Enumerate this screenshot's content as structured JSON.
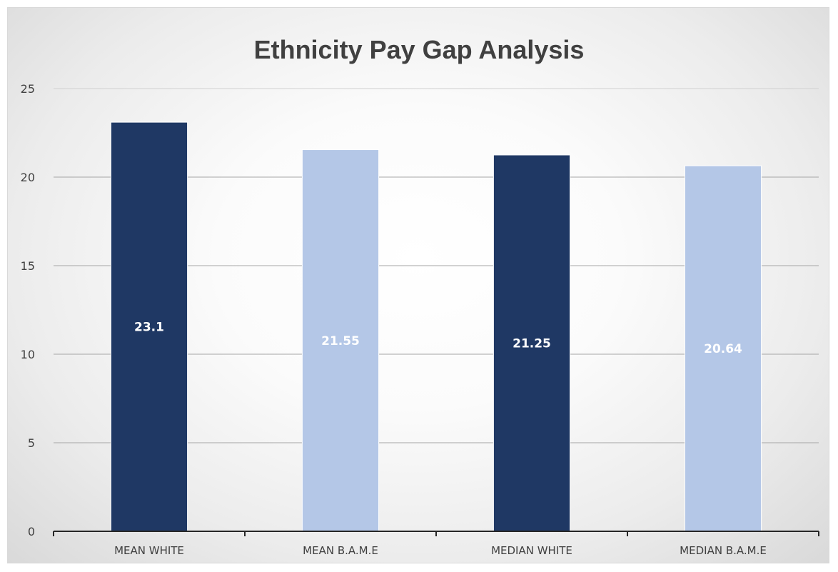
{
  "chart_data": {
    "type": "bar",
    "title": "Ethnicity Pay Gap Analysis",
    "xlabel": "",
    "ylabel": "",
    "categories": [
      "MEAN WHITE",
      "MEAN B.A.M.E",
      "MEDIAN WHITE",
      "MEDIAN B.A.M.E"
    ],
    "values": [
      23.1,
      21.55,
      21.25,
      20.64
    ],
    "data_labels": [
      "23.1",
      "21.55",
      "21.25",
      "20.64"
    ],
    "bar_colors": [
      "#1f3864",
      "#b4c7e7",
      "#1f3864",
      "#b4c7e7"
    ],
    "label_colors": [
      "#ffffff",
      "#ffffff",
      "#ffffff",
      "#ffffff"
    ],
    "ylim": [
      0,
      25
    ],
    "yticks": [
      0,
      5,
      10,
      15,
      20,
      25
    ],
    "ytick_labels": [
      "0",
      "5",
      "10",
      "15",
      "20",
      "25"
    ],
    "grid": true,
    "legend": "none"
  }
}
